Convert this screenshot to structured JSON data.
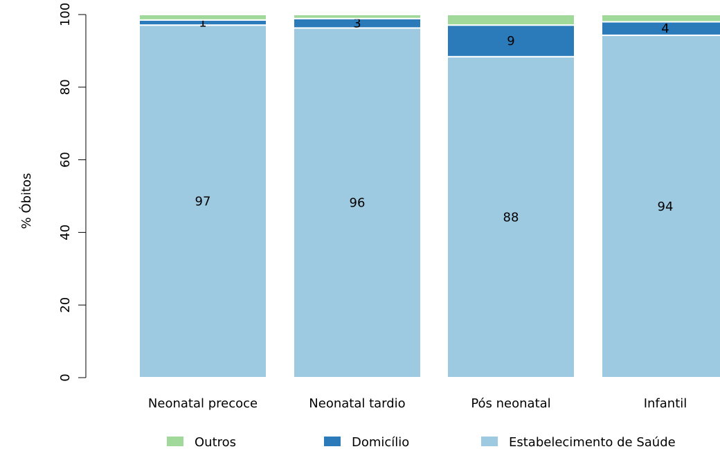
{
  "chart_data": {
    "type": "bar",
    "stacked": true,
    "title": "",
    "xlabel": "",
    "ylabel": "% Óbitos",
    "ylim": [
      0,
      100
    ],
    "yticks": [
      0,
      20,
      40,
      60,
      80,
      100
    ],
    "grid": false,
    "legend_position": "bottom",
    "categories": [
      "Neonatal precoce",
      "Neonatal tardio",
      "Pós neonatal",
      "Infantil"
    ],
    "series": [
      {
        "name": "Estabelecimento de Saúde",
        "color": "#9ecae1",
        "values": [
          97.1,
          96.3,
          88.4,
          94.3
        ],
        "labels": [
          "97",
          "96",
          "88",
          "94"
        ]
      },
      {
        "name": "Domicílio",
        "color": "#2b7bba",
        "values": [
          1.4,
          2.6,
          8.7,
          3.7
        ],
        "labels": [
          "1",
          "3",
          "9",
          "4"
        ]
      },
      {
        "name": "Outros",
        "color": "#a1d99b",
        "values": [
          1.5,
          1.1,
          2.9,
          2.0
        ],
        "labels": [
          "",
          "",
          "",
          ""
        ]
      }
    ],
    "legend_order": [
      "Outros",
      "Domicílio",
      "Estabelecimento de Saúde"
    ]
  }
}
